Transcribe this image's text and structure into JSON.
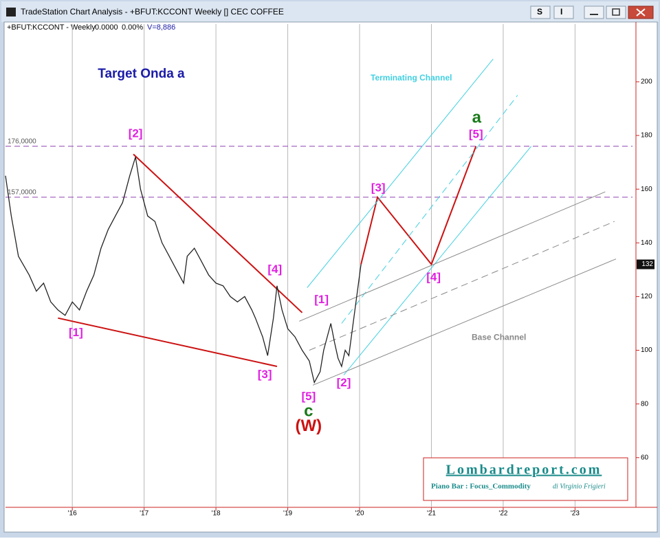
{
  "window": {
    "title": "TradeStation Chart Analysis - +BFUT:KCCONT Weekly [] CEC COFFEE",
    "buttons": [
      "S",
      "I"
    ]
  },
  "header": {
    "symbol": "+BFUT:KCCONT - Weekly",
    "change": "0.0000",
    "percent": "0.00%",
    "volume": "V=8,886"
  },
  "chart_data": {
    "type": "line",
    "x": [
      2015.07,
      2015.15,
      2015.25,
      2015.4,
      2015.5,
      2015.6,
      2015.7,
      2015.8,
      2015.9,
      2016.0,
      2016.1,
      2016.2,
      2016.3,
      2016.4,
      2016.5,
      2016.6,
      2016.7,
      2016.8,
      2016.88,
      2016.95,
      2017.05,
      2017.15,
      2017.25,
      2017.35,
      2017.45,
      2017.55,
      2017.6,
      2017.7,
      2017.8,
      2017.9,
      2018.0,
      2018.1,
      2018.2,
      2018.3,
      2018.4,
      2018.5,
      2018.55,
      2018.65,
      2018.72,
      2018.8,
      2018.85,
      2018.92,
      2019.0,
      2019.1,
      2019.2,
      2019.3,
      2019.37,
      2019.45,
      2019.5,
      2019.6,
      2019.65,
      2019.7,
      2019.75,
      2019.8,
      2019.85,
      2019.9,
      2019.95,
      2020.0,
      2020.02
    ],
    "values": [
      165,
      150,
      135,
      128,
      122,
      125,
      118,
      115,
      113,
      118,
      115,
      122,
      128,
      138,
      145,
      150,
      155,
      165,
      172,
      160,
      150,
      148,
      140,
      135,
      130,
      125,
      135,
      138,
      133,
      128,
      125,
      124,
      120,
      118,
      120,
      115,
      112,
      105,
      98,
      112,
      124,
      115,
      108,
      105,
      100,
      96,
      88,
      92,
      100,
      110,
      103,
      97,
      94,
      100,
      98,
      108,
      118,
      128,
      132
    ],
    "color": "#222222",
    "xlim": [
      2015.07,
      2023.8
    ],
    "ylim": [
      41.5,
      221.5
    ],
    "xticks": [
      {
        "value": 2016,
        "label": "'16"
      },
      {
        "value": 2017,
        "label": "'17"
      },
      {
        "value": 2018,
        "label": "'18"
      },
      {
        "value": 2019,
        "label": "'19"
      },
      {
        "value": 2020,
        "label": "'20"
      },
      {
        "value": 2021,
        "label": "'21"
      },
      {
        "value": 2022,
        "label": "'22"
      },
      {
        "value": 2023,
        "label": "'23"
      }
    ],
    "yticks": [
      60,
      80,
      100,
      120,
      140,
      160,
      180,
      200
    ],
    "last": 132,
    "levels": [
      {
        "value": 176,
        "label": "176,0000"
      },
      {
        "value": 157,
        "label": "157,0000"
      }
    ],
    "lines": [
      {
        "x": [
          2020.02,
          2020.25,
          2021.0,
          2021.62
        ],
        "y": [
          132,
          157,
          132,
          176
        ],
        "color": "#cc1111",
        "dash": false
      },
      {
        "x": [
          2016.85,
          2019.2
        ],
        "y": [
          173,
          114
        ],
        "color": "#cc1111",
        "dash": false
      },
      {
        "x": [
          2015.8,
          2018.85
        ],
        "y": [
          112,
          94
        ],
        "color": "#cc1111",
        "dash": false
      },
      {
        "x": [
          2019.27,
          2021.86
        ],
        "y": [
          123.3,
          208.5
        ],
        "color": "#40d0e0",
        "dash": false
      },
      {
        "x": [
          2019.75,
          2022.2
        ],
        "y": [
          110,
          195
        ],
        "color": "#40d0e0",
        "dash": true
      },
      {
        "x": [
          2019.78,
          2022.39
        ],
        "y": [
          90.8,
          176
        ],
        "color": "#40d0e0",
        "dash": false
      },
      {
        "x": [
          2019.16,
          2023.42
        ],
        "y": [
          110.8,
          159
        ],
        "color": "#888888",
        "dash": false
      },
      {
        "x": [
          2019.3,
          2023.55
        ],
        "y": [
          100,
          148
        ],
        "color": "#888888",
        "dash": true
      },
      {
        "x": [
          2019.35,
          2023.57
        ],
        "y": [
          87,
          134
        ],
        "color": "#888888",
        "dash": false
      }
    ],
    "annotations": [
      {
        "text": "Target Onda a",
        "x": 2016.96,
        "y": 202.8,
        "color": "#1a1aa8",
        "kind": "heading"
      },
      {
        "text": "Terminating Channel",
        "x": 2020.72,
        "y": 201.3,
        "color": "#40d0e0",
        "kind": "channel"
      },
      {
        "text": "Base Channel",
        "x": 2021.94,
        "y": 104.6,
        "color": "#888888",
        "kind": "channel"
      },
      {
        "text": "[2]",
        "x": 2016.88,
        "y": 180.5,
        "color": "#e020e0",
        "kind": "wave"
      },
      {
        "text": "[1]",
        "x": 2016.05,
        "y": 106.4,
        "color": "#e020e0",
        "kind": "wave"
      },
      {
        "text": "[3]",
        "x": 2018.68,
        "y": 90.8,
        "color": "#e020e0",
        "kind": "wave"
      },
      {
        "text": "[4]",
        "x": 2018.82,
        "y": 130,
        "color": "#e020e0",
        "kind": "wave"
      },
      {
        "text": "[5]",
        "x": 2019.29,
        "y": 82.6,
        "color": "#e020e0",
        "kind": "wave"
      },
      {
        "text": "c",
        "x": 2019.29,
        "y": 77,
        "color": "#1a7a1a",
        "kind": "degree"
      },
      {
        "text": "(W)",
        "x": 2019.29,
        "y": 71.5,
        "color": "#cc1111",
        "kind": "degree"
      },
      {
        "text": "[1]",
        "x": 2019.47,
        "y": 118.7,
        "color": "#e020e0",
        "kind": "wave"
      },
      {
        "text": "[2]",
        "x": 2019.78,
        "y": 87.7,
        "color": "#e020e0",
        "kind": "wave"
      },
      {
        "text": "[3]",
        "x": 2020.26,
        "y": 160.3,
        "color": "#e020e0",
        "kind": "wave"
      },
      {
        "text": "[4]",
        "x": 2021.03,
        "y": 127,
        "color": "#e020e0",
        "kind": "wave"
      },
      {
        "text": "[5]",
        "x": 2021.62,
        "y": 180.3,
        "color": "#e020e0",
        "kind": "wave"
      },
      {
        "text": "a",
        "x": 2021.63,
        "y": 186.4,
        "color": "#1a7a1a",
        "kind": "degree"
      }
    ]
  },
  "footer_box": {
    "site": "Lombardreport.com",
    "caption": "Piano Bar : Focus_Commodity",
    "author": "di Virginio Frigieri"
  }
}
